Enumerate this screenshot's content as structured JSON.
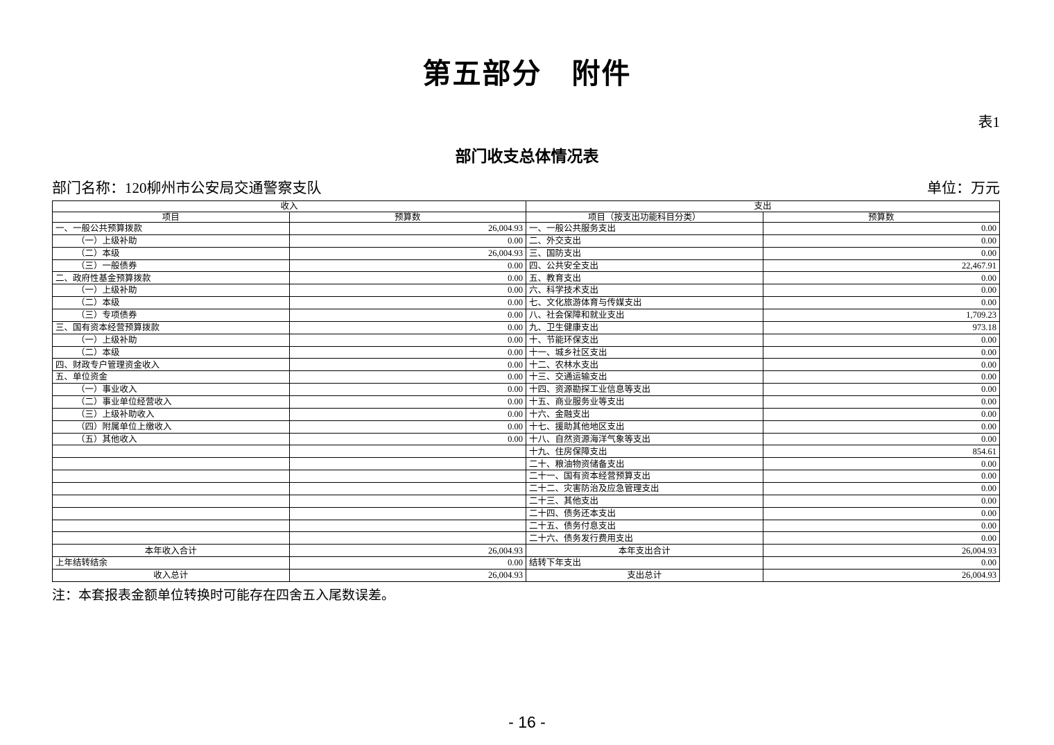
{
  "page": {
    "part_title": "第五部分　附件",
    "table_label": "表1",
    "table_title": "部门收支总体情况表",
    "dept_name": "部门名称：120柳州市公安局交通警察支队",
    "unit": "单位：万元",
    "note": "注：本套报表金额单位转换时可能存在四舍五入尾数误差。",
    "page_number": "- 16 -"
  },
  "table": {
    "income_header": "收入",
    "expense_header": "支出",
    "col_headers": {
      "income_item": "项目",
      "income_budget": "预算数",
      "expense_item": "项目（按支出功能科目分类）",
      "expense_budget": "预算数"
    },
    "rows": [
      {
        "type": "data",
        "in_item": "一、一般公共预算拨款",
        "in_sub": false,
        "in_val": "26,004.93",
        "ex_item": "一、一般公共服务支出",
        "ex_val": "0.00"
      },
      {
        "type": "data",
        "in_item": "（一）上级补助",
        "in_sub": true,
        "in_val": "0.00",
        "ex_item": "二、外交支出",
        "ex_val": "0.00"
      },
      {
        "type": "data",
        "in_item": "（二）本级",
        "in_sub": true,
        "in_val": "26,004.93",
        "ex_item": "三、国防支出",
        "ex_val": "0.00"
      },
      {
        "type": "data",
        "in_item": "（三）一般债券",
        "in_sub": true,
        "in_val": "0.00",
        "ex_item": "四、公共安全支出",
        "ex_val": "22,467.91"
      },
      {
        "type": "data",
        "in_item": "二、政府性基金预算拨款",
        "in_sub": false,
        "in_val": "0.00",
        "ex_item": "五、教育支出",
        "ex_val": "0.00"
      },
      {
        "type": "data",
        "in_item": "（一）上级补助",
        "in_sub": true,
        "in_val": "0.00",
        "ex_item": "六、科学技术支出",
        "ex_val": "0.00"
      },
      {
        "type": "data",
        "in_item": "（二）本级",
        "in_sub": true,
        "in_val": "0.00",
        "ex_item": "七、文化旅游体育与传媒支出",
        "ex_val": "0.00"
      },
      {
        "type": "data",
        "in_item": "（三）专项债券",
        "in_sub": true,
        "in_val": "0.00",
        "ex_item": "八、社会保障和就业支出",
        "ex_val": "1,709.23"
      },
      {
        "type": "data",
        "in_item": "三、国有资本经营预算拨款",
        "in_sub": false,
        "in_val": "0.00",
        "ex_item": "九、卫生健康支出",
        "ex_val": "973.18"
      },
      {
        "type": "data",
        "in_item": "（一）上级补助",
        "in_sub": true,
        "in_val": "0.00",
        "ex_item": "十、节能环保支出",
        "ex_val": "0.00"
      },
      {
        "type": "data",
        "in_item": "（二）本级",
        "in_sub": true,
        "in_val": "0.00",
        "ex_item": "十一、城乡社区支出",
        "ex_val": "0.00"
      },
      {
        "type": "data",
        "in_item": "四、财政专户管理资金收入",
        "in_sub": false,
        "in_val": "0.00",
        "ex_item": "十二、农林水支出",
        "ex_val": "0.00"
      },
      {
        "type": "data",
        "in_item": "五、单位资金",
        "in_sub": false,
        "in_val": "0.00",
        "ex_item": "十三、交通运输支出",
        "ex_val": "0.00"
      },
      {
        "type": "data",
        "in_item": "（一）事业收入",
        "in_sub": true,
        "in_val": "0.00",
        "ex_item": "十四、资源勘探工业信息等支出",
        "ex_val": "0.00"
      },
      {
        "type": "data",
        "in_item": "（二）事业单位经营收入",
        "in_sub": true,
        "in_val": "0.00",
        "ex_item": "十五、商业服务业等支出",
        "ex_val": "0.00"
      },
      {
        "type": "data",
        "in_item": "（三）上级补助收入",
        "in_sub": true,
        "in_val": "0.00",
        "ex_item": "十六、金融支出",
        "ex_val": "0.00"
      },
      {
        "type": "data",
        "in_item": "（四）附属单位上缴收入",
        "in_sub": true,
        "in_val": "0.00",
        "ex_item": "十七、援助其他地区支出",
        "ex_val": "0.00"
      },
      {
        "type": "data",
        "in_item": "（五）其他收入",
        "in_sub": true,
        "in_val": "0.00",
        "ex_item": "十八、自然资源海洋气象等支出",
        "ex_val": "0.00"
      },
      {
        "type": "data",
        "in_item": "",
        "in_sub": false,
        "in_val": "",
        "ex_item": "十九、住房保障支出",
        "ex_val": "854.61"
      },
      {
        "type": "data",
        "in_item": "",
        "in_sub": false,
        "in_val": "",
        "ex_item": "二十、粮油物资储备支出",
        "ex_val": "0.00"
      },
      {
        "type": "data",
        "in_item": "",
        "in_sub": false,
        "in_val": "",
        "ex_item": "二十一、国有资本经营预算支出",
        "ex_val": "0.00"
      },
      {
        "type": "data",
        "in_item": "",
        "in_sub": false,
        "in_val": "",
        "ex_item": "二十二、灾害防治及应急管理支出",
        "ex_val": "0.00"
      },
      {
        "type": "data",
        "in_item": "",
        "in_sub": false,
        "in_val": "",
        "ex_item": "二十三、其他支出",
        "ex_val": "0.00"
      },
      {
        "type": "data",
        "in_item": "",
        "in_sub": false,
        "in_val": "",
        "ex_item": "二十四、债务还本支出",
        "ex_val": "0.00"
      },
      {
        "type": "data",
        "in_item": "",
        "in_sub": false,
        "in_val": "",
        "ex_item": "二十五、债务付息支出",
        "ex_val": "0.00"
      },
      {
        "type": "data",
        "in_item": "",
        "in_sub": false,
        "in_val": "",
        "ex_item": "二十六、债务发行费用支出",
        "ex_val": "0.00"
      },
      {
        "type": "total",
        "in_item": "本年收入合计",
        "in_center": true,
        "in_val": "26,004.93",
        "ex_item": "本年支出合计",
        "ex_center": true,
        "ex_val": "26,004.93"
      },
      {
        "type": "total",
        "in_item": "上年结转结余",
        "in_center": false,
        "in_val": "0.00",
        "ex_item": "结转下年支出",
        "ex_center": false,
        "ex_val": "0.00"
      },
      {
        "type": "total",
        "in_item": "收入总计",
        "in_center": true,
        "in_val": "26,004.93",
        "ex_item": "支出总计",
        "ex_center": true,
        "ex_val": "26,004.93"
      }
    ]
  }
}
